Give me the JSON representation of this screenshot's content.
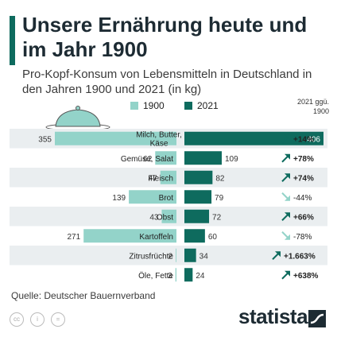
{
  "title": "Unsere Ernährung heute und im Jahr 1900",
  "subtitle": "Pro-Kopf-Konsum von Lebensmitteln in Deutschland in den Jahren 1900 und 2021 (in kg)",
  "legend": {
    "label_1900": "1900",
    "label_2021": "2021"
  },
  "change_header": "2021 ggü. 1900",
  "source": "Quelle: Deutscher Bauernverband",
  "brand": "statista",
  "colors": {
    "color_1900": "#93d3c9",
    "color_2021": "#0e6b5e",
    "up_arrow": "#0e6b5e",
    "down_arrow": "#93d3c9",
    "row_band": "#eaeef0"
  },
  "chart_data": {
    "type": "bar",
    "categories": [
      "Milch, Butter, Käse",
      "Gemüse, Salat",
      "Fleisch",
      "Brot",
      "Obst",
      "Kartoffeln",
      "Zitrusfrüchte",
      "Öle, Fette"
    ],
    "series": [
      {
        "name": "1900",
        "values": [
          355,
          62,
          47,
          139,
          43,
          271,
          2,
          3
        ]
      },
      {
        "name": "2021",
        "values": [
          406,
          109,
          82,
          79,
          72,
          60,
          34,
          24
        ]
      }
    ],
    "changes": [
      "+14%",
      "+78%",
      "+74%",
      "-44%",
      "+66%",
      "-78%",
      "+1.663%",
      "+638%"
    ],
    "change_direction": [
      "up",
      "up",
      "up",
      "down",
      "up",
      "down",
      "up",
      "up"
    ],
    "xlim": [
      0,
      406
    ],
    "grid": false,
    "legend_position": "top"
  }
}
